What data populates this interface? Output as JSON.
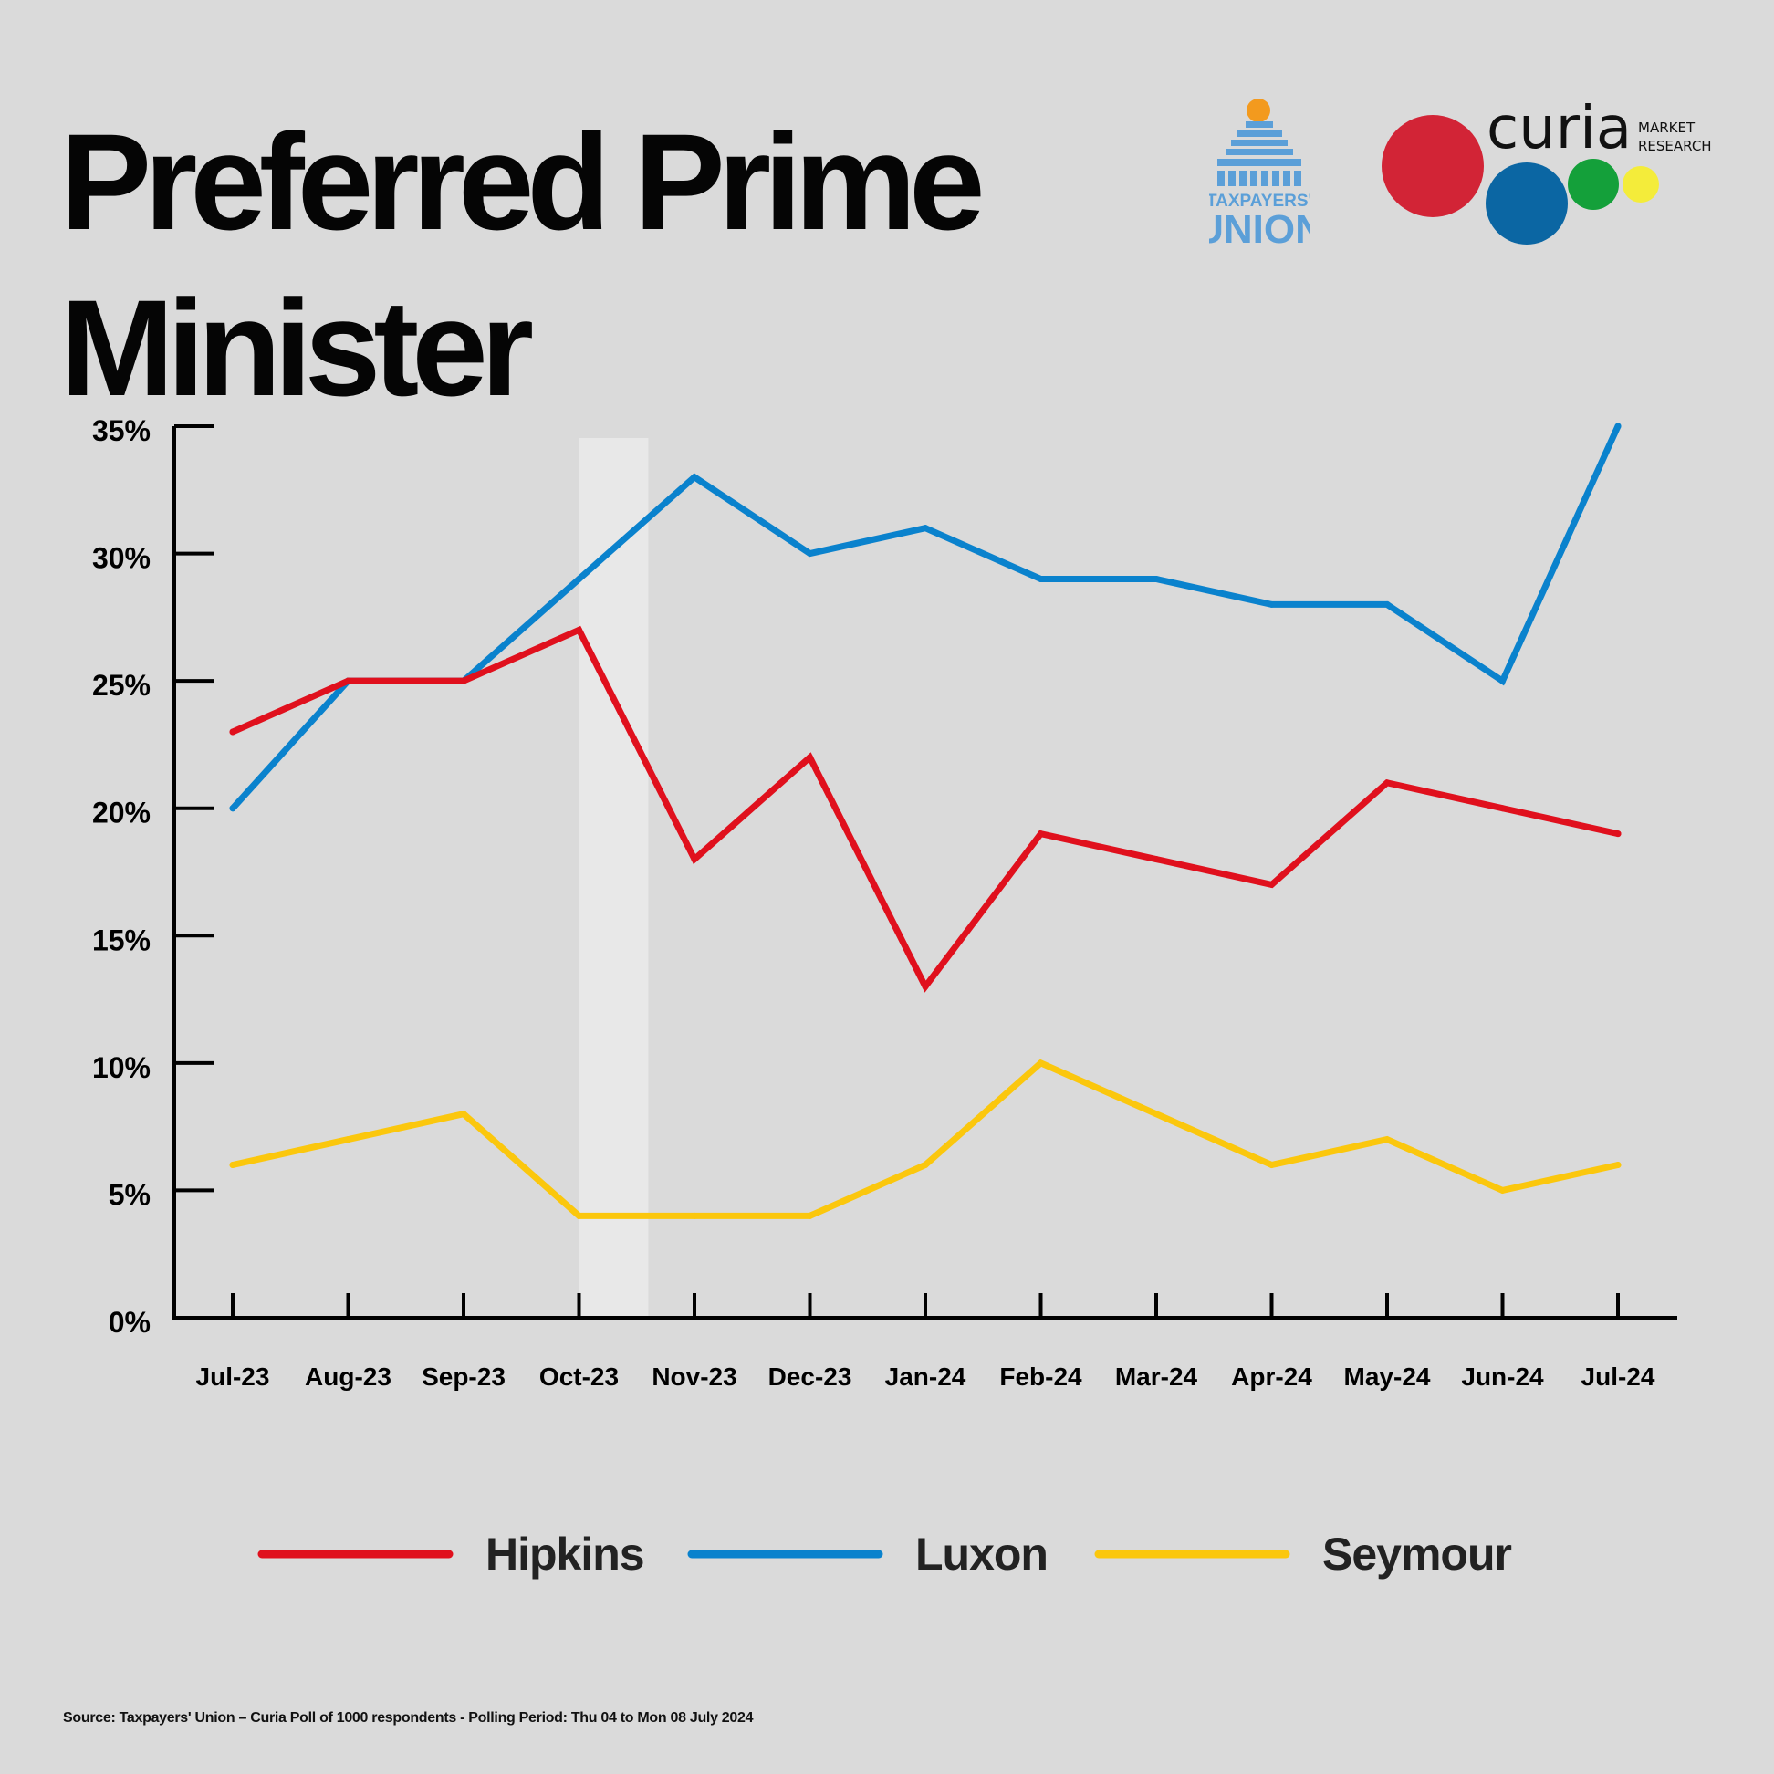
{
  "title": {
    "line1": "Preferred Prime",
    "line2": "Minister"
  },
  "logos": {
    "taxpayers_union": {
      "line1": "TAXPAYERS'",
      "line2": "UNION"
    },
    "curia": {
      "name": "curia",
      "tagline1": "MARKET",
      "tagline2": "RESEARCH"
    }
  },
  "chart_data": {
    "type": "line",
    "title": "Preferred Prime Minister",
    "xlabel": "",
    "ylabel": "",
    "categories": [
      "Jul-23",
      "Aug-23",
      "Sep-23",
      "Oct-23",
      "Nov-23",
      "Dec-23",
      "Jan-24",
      "Feb-24",
      "Mar-24",
      "Apr-24",
      "May-24",
      "Jun-24",
      "Jul-24"
    ],
    "ylim": [
      0,
      35
    ],
    "yticks": [
      0,
      5,
      10,
      15,
      20,
      25,
      30,
      35
    ],
    "ytick_labels": [
      "0%",
      "5%",
      "10%",
      "15%",
      "20%",
      "25%",
      "30%",
      "35%"
    ],
    "highlight_band": {
      "from_index": 3,
      "to_index": 3.6,
      "label": ""
    },
    "series": [
      {
        "name": "Hipkins",
        "color": "#e0101d",
        "values": [
          23,
          25,
          25,
          27,
          18,
          22,
          13,
          19,
          18,
          17,
          21,
          20,
          19
        ]
      },
      {
        "name": "Luxon",
        "color": "#0a82cd",
        "values": [
          20,
          25,
          25,
          29,
          33,
          30,
          31,
          29,
          29,
          28,
          28,
          25,
          35
        ]
      },
      {
        "name": "Seymour",
        "color": "#fbc70d",
        "values": [
          6,
          7,
          8,
          4,
          4,
          4,
          6,
          10,
          8,
          6,
          7,
          5,
          6
        ]
      }
    ],
    "legend_position": "bottom",
    "grid": false
  },
  "source": "Source: Taxpayers' Union – Curia Poll of 1000 respondents -  Polling Period: Thu 04 to Mon 08 July 2024"
}
